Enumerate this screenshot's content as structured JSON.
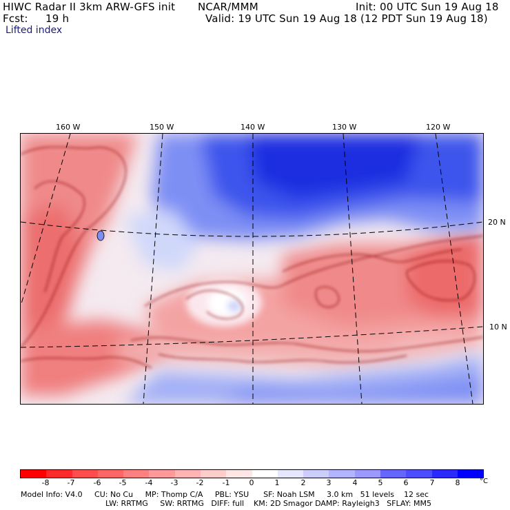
{
  "header": {
    "model_title": "HIWC Radar II 3km ARW-GFS init",
    "center": "NCAR/MMM",
    "init": "Init: 00 UTC Sun 19 Aug 18",
    "fcst_label": "Fcst:",
    "fcst_value": "19 h",
    "valid": "Valid: 19 UTC Sun 19 Aug 18 (12 PDT Sun 19 Aug 18)",
    "field": "Lifted index"
  },
  "map": {
    "longitude_labels": [
      "160 W",
      "150 W",
      "140 W",
      "130 W",
      "120 W"
    ],
    "latitude_labels": [
      "20 N",
      "10 N"
    ],
    "field_range": [
      -8,
      8
    ],
    "colors": {
      "contour": "#8b0000",
      "gridlines": "#000000"
    }
  },
  "colorbar": {
    "tick_labels": [
      "-8",
      "-7",
      "-6",
      "-5",
      "-4",
      "-3",
      "-2",
      "-1",
      "0",
      "1",
      "2",
      "3",
      "4",
      "5",
      "6",
      "7",
      "8"
    ],
    "unit": "°C",
    "colors": [
      "#ff0000",
      "#ff2a2a",
      "#ff4d4d",
      "#ff6666",
      "#ff8080",
      "#ff9999",
      "#ffb3b3",
      "#ffcccc",
      "#ffe6e6",
      "#ffffff",
      "#e6e6ff",
      "#ccccff",
      "#b3b3ff",
      "#9999ff",
      "#6666ff",
      "#4d4dff",
      "#2a2aff",
      "#0000ff"
    ]
  },
  "footer": {
    "line1": "Model Info: V4.0     CU: No Cu     MP: Thomp C/A     PBL: YSU      SF: Noah LSM     3.0 km   51 levels    12 sec",
    "line2": "LW: RRTMG     SW: RRTMG   DIFF: full    KM: 2D Smagor DAMP: Rayleigh3   SFLAY: MM5"
  }
}
